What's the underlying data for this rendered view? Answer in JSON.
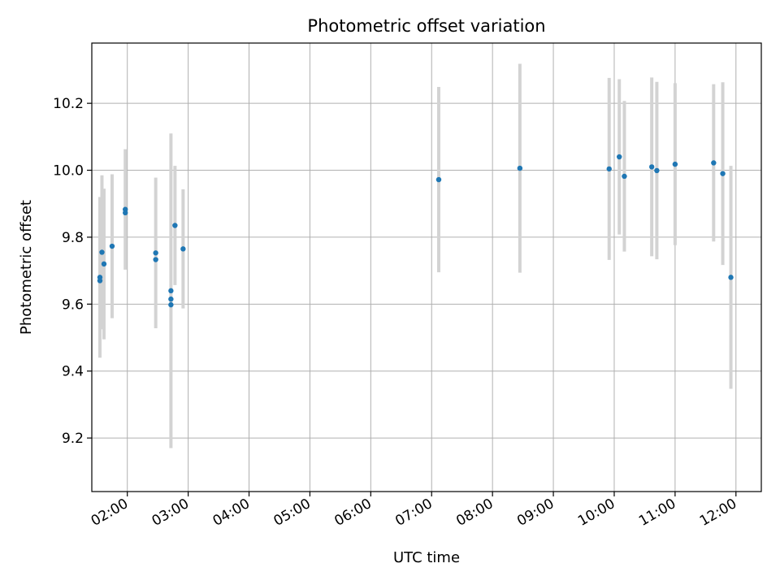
{
  "chart_data": {
    "type": "scatter",
    "title": "Photometric offset variation",
    "xlabel": "UTC time",
    "ylabel": "Photometric offset",
    "x_axis_type": "time",
    "x_tick_labels": [
      "02:00",
      "03:00",
      "04:00",
      "05:00",
      "06:00",
      "07:00",
      "08:00",
      "09:00",
      "10:00",
      "11:00",
      "12:00"
    ],
    "y_ticks": [
      9.2,
      9.4,
      9.6,
      9.8,
      10.0,
      10.2
    ],
    "y_tick_labels": [
      "9.2",
      "9.4",
      "9.6",
      "9.8",
      "10.0",
      "10.2"
    ],
    "xlim": [
      "01:25",
      "12:25"
    ],
    "ylim": [
      9.04,
      10.38
    ],
    "grid": true,
    "series": [
      {
        "marker_color": "#1f77b4",
        "errorbar_color": "#d3d3d3",
        "points": [
          {
            "x": "01:33",
            "y": 9.68,
            "yerr": 0.24
          },
          {
            "x": "01:33",
            "y": 9.67,
            "yerr": 0.0
          },
          {
            "x": "01:35",
            "y": 9.755,
            "yerr": 0.23
          },
          {
            "x": "01:37",
            "y": 9.72,
            "yerr": 0.225
          },
          {
            "x": "01:45",
            "y": 9.773,
            "yerr": 0.215
          },
          {
            "x": "01:58",
            "y": 9.883,
            "yerr": 0.18
          },
          {
            "x": "01:58",
            "y": 9.873,
            "yerr": 0.0
          },
          {
            "x": "02:28",
            "y": 9.753,
            "yerr": 0.225
          },
          {
            "x": "02:28",
            "y": 9.733,
            "yerr": 0.0
          },
          {
            "x": "02:43",
            "y": 9.64,
            "yerr": 0.47
          },
          {
            "x": "02:43",
            "y": 9.615,
            "yerr": 0.0
          },
          {
            "x": "02:43",
            "y": 9.598,
            "yerr": 0.0
          },
          {
            "x": "02:47",
            "y": 9.835,
            "yerr": 0.178
          },
          {
            "x": "02:55",
            "y": 9.765,
            "yerr": 0.178
          },
          {
            "x": "07:07",
            "y": 9.972,
            "yerr": 0.277
          },
          {
            "x": "08:27",
            "y": 10.006,
            "yerr": 0.312
          },
          {
            "x": "09:55",
            "y": 10.004,
            "yerr": 0.272
          },
          {
            "x": "10:05",
            "y": 10.04,
            "yerr": 0.232
          },
          {
            "x": "10:10",
            "y": 9.982,
            "yerr": 0.225
          },
          {
            "x": "10:37",
            "y": 10.01,
            "yerr": 0.267
          },
          {
            "x": "10:42",
            "y": 9.999,
            "yerr": 0.265
          },
          {
            "x": "11:00",
            "y": 10.018,
            "yerr": 0.242
          },
          {
            "x": "11:38",
            "y": 10.022,
            "yerr": 0.235
          },
          {
            "x": "11:47",
            "y": 9.99,
            "yerr": 0.273
          },
          {
            "x": "11:55",
            "y": 9.68,
            "yerr": 0.333
          }
        ]
      }
    ]
  }
}
